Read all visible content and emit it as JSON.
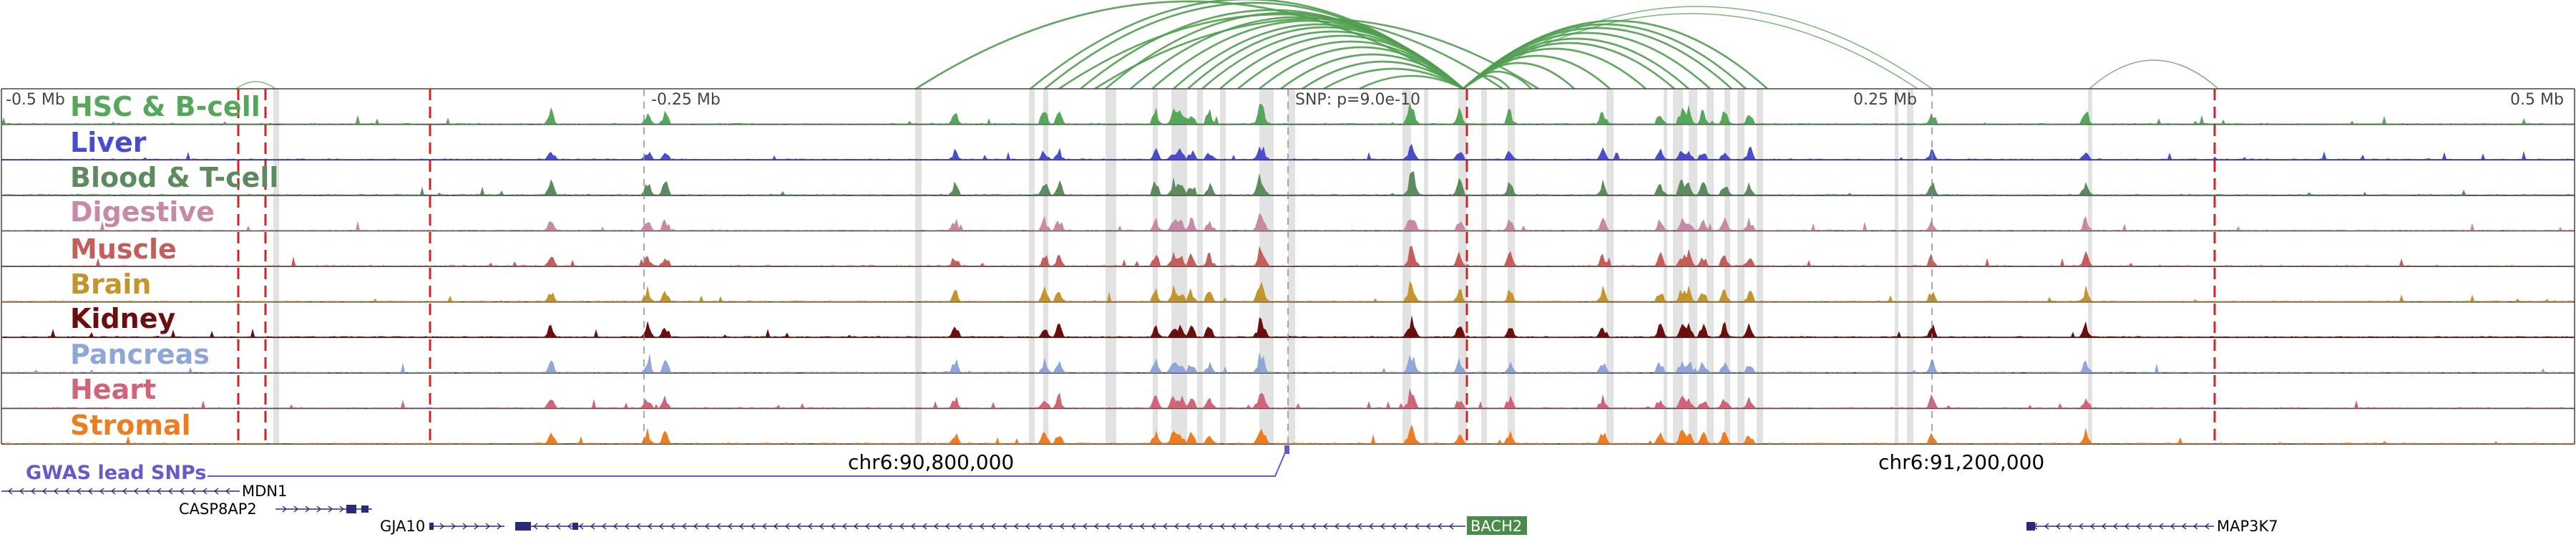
{
  "ruler": {
    "tick_labels": [
      "-0.5 Mb",
      "-0.25 Mb",
      "0.25 Mb",
      "0.5 Mb"
    ],
    "snp_label": "SNP: p=9.0e-10"
  },
  "tracks": [
    {
      "name": "HSC & B-cell",
      "color": "#57a75a"
    },
    {
      "name": "Liver",
      "color": "#4a4ccf"
    },
    {
      "name": "Blood & T-cell",
      "color": "#5d8b5f"
    },
    {
      "name": "Digestive",
      "color": "#c68aa6"
    },
    {
      "name": "Muscle",
      "color": "#c45e5a"
    },
    {
      "name": "Brain",
      "color": "#c4952b"
    },
    {
      "name": "Kidney",
      "color": "#6a0e0e"
    },
    {
      "name": "Pancreas",
      "color": "#8fa6d6"
    },
    {
      "name": "Heart",
      "color": "#d06478"
    },
    {
      "name": "Stromal",
      "color": "#ee7d22"
    }
  ],
  "gwas": {
    "title": "GWAS lead SNPs",
    "color": "#6a58c8"
  },
  "coordinates": [
    "chr6:90,800,000",
    "chr6:91,200,000"
  ],
  "genes": {
    "mdn1": "MDN1",
    "casp8ap2": "CASP8AP2",
    "gja10": "GJA10",
    "bach2": "BACH2",
    "map3k7": "MAP3K7"
  },
  "colors": {
    "loop": "#4f9d4f",
    "boundary_line": "#d42020",
    "highlight": "#e2e2e2",
    "gene": "#2a2a7a",
    "bach2_box": "#4a8a4a"
  }
}
